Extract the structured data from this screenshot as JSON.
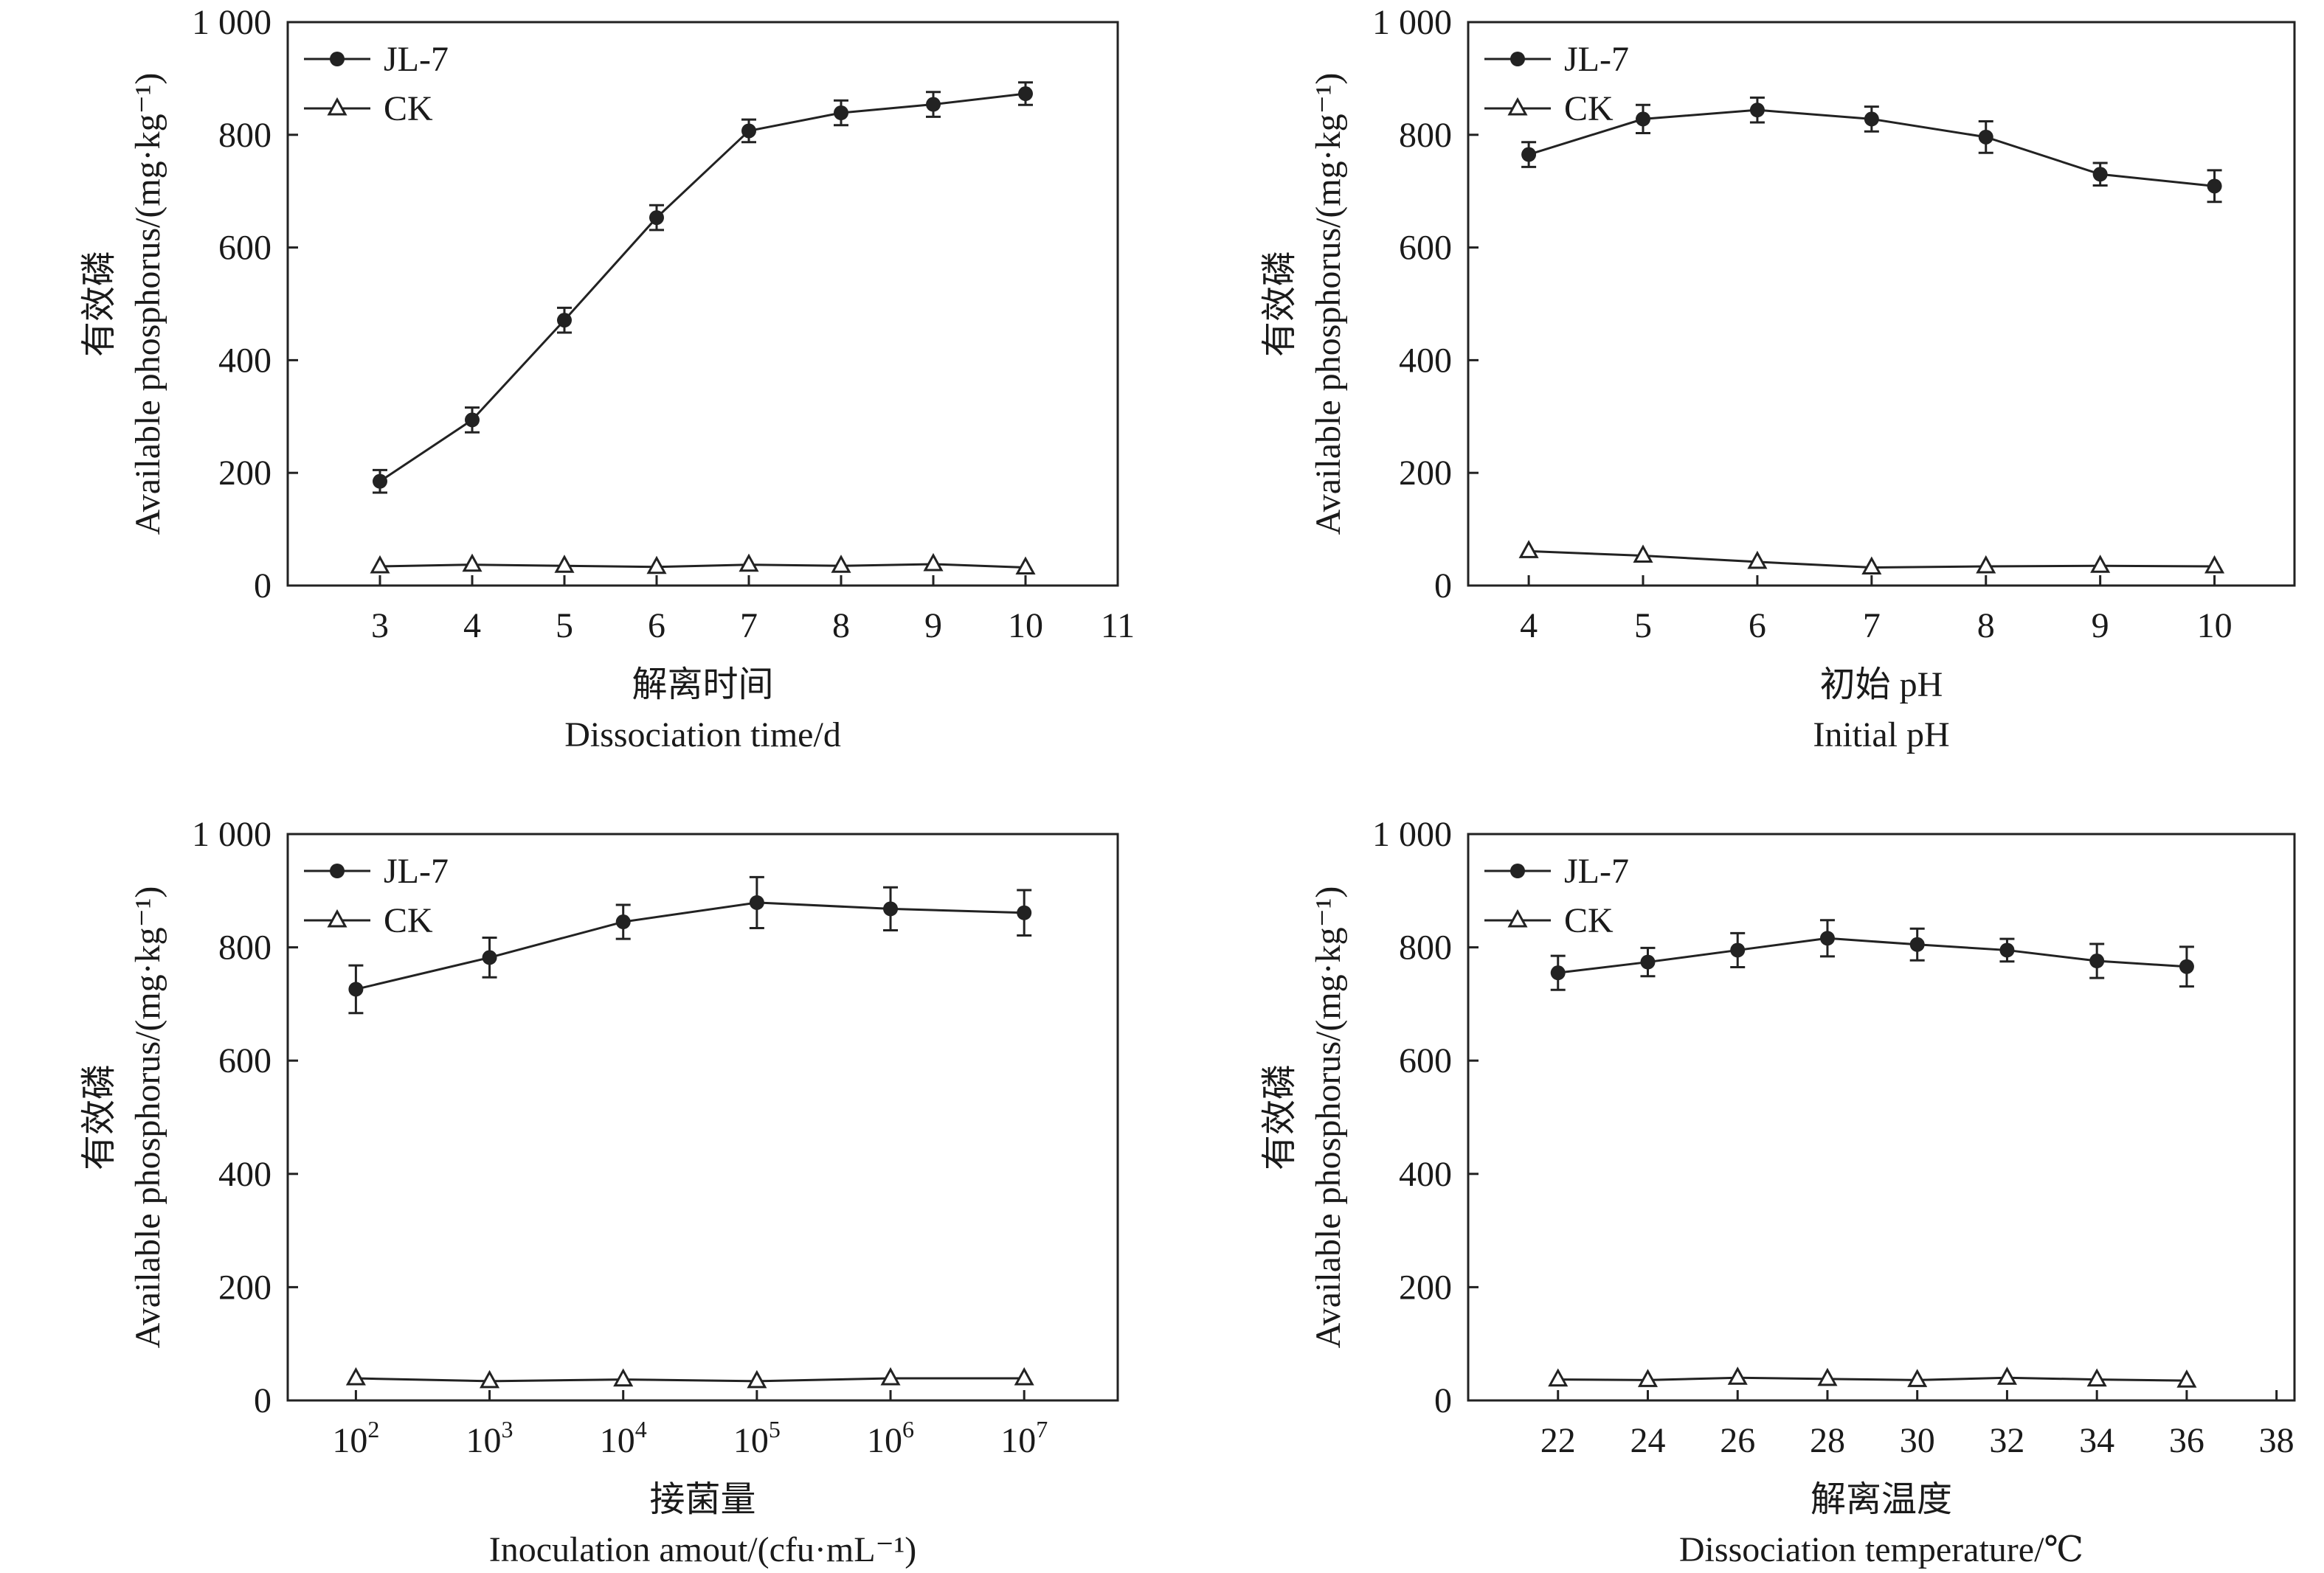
{
  "chart_data": [
    {
      "type": "line",
      "xlabel_cn": "解离时间",
      "xlabel": "Dissociation time/d",
      "ylabel_cn": "有效磷",
      "ylabel": "Available phosphorus/(mg·kg⁻¹)",
      "ylim": [
        0,
        1000
      ],
      "xlim": [
        2,
        11
      ],
      "yticks": [
        "0",
        "200",
        "400",
        "600",
        "800",
        "1 000"
      ],
      "xticks": [
        {
          "v": 3,
          "t": "3"
        },
        {
          "v": 4,
          "t": "4"
        },
        {
          "v": 5,
          "t": "5"
        },
        {
          "v": 6,
          "t": "6"
        },
        {
          "v": 7,
          "t": "7"
        },
        {
          "v": 8,
          "t": "8"
        },
        {
          "v": 9,
          "t": "9"
        },
        {
          "v": 10,
          "t": "10"
        },
        {
          "v": 11,
          "t": "11"
        }
      ],
      "x": [
        3,
        4,
        5,
        6,
        7,
        8,
        9,
        10
      ],
      "series": [
        {
          "name": "JL-7",
          "marker": "filled-circle",
          "values": [
            185,
            294,
            471,
            653,
            807,
            839,
            854,
            873
          ],
          "errors": [
            20,
            22,
            22,
            22,
            20,
            22,
            22,
            20
          ]
        },
        {
          "name": "CK",
          "marker": "open-triangle",
          "values": [
            34,
            37,
            35,
            33,
            37,
            35,
            38,
            32
          ],
          "errors": [
            0,
            0,
            0,
            0,
            0,
            0,
            0,
            0
          ]
        }
      ]
    },
    {
      "type": "line",
      "xlabel_cn": "初始 pH",
      "xlabel": "Initial pH",
      "ylabel_cn": "有效磷",
      "ylabel": "Available phosphorus/(mg·kg⁻¹)",
      "ylim": [
        0,
        1000
      ],
      "xlim": [
        3.47,
        10.7
      ],
      "yticks": [
        "0",
        "200",
        "400",
        "600",
        "800",
        "1 000"
      ],
      "xticks": [
        {
          "v": 4,
          "t": "4"
        },
        {
          "v": 5,
          "t": "5"
        },
        {
          "v": 6,
          "t": "6"
        },
        {
          "v": 7,
          "t": "7"
        },
        {
          "v": 8,
          "t": "8"
        },
        {
          "v": 9,
          "t": "9"
        },
        {
          "v": 10,
          "t": "10"
        }
      ],
      "x": [
        4,
        5,
        6,
        7,
        8,
        9,
        10
      ],
      "series": [
        {
          "name": "JL-7",
          "marker": "filled-circle",
          "values": [
            765,
            828,
            844,
            828,
            796,
            730,
            709
          ],
          "errors": [
            22,
            25,
            22,
            22,
            28,
            20,
            28
          ]
        },
        {
          "name": "CK",
          "marker": "open-triangle",
          "values": [
            61,
            53,
            42,
            32,
            34,
            35,
            34
          ],
          "errors": [
            0,
            0,
            0,
            0,
            0,
            0,
            0
          ]
        }
      ]
    },
    {
      "type": "line",
      "xlabel_cn": "接菌量",
      "xlabel": "Inoculation amout/(cfu·mL⁻¹)",
      "ylabel_cn": "有效磷",
      "ylabel": "Available phosphorus/(mg·kg⁻¹)",
      "ylim": [
        0,
        1000
      ],
      "xlim": [
        1.49,
        7.7
      ],
      "yticks": [
        "0",
        "200",
        "400",
        "600",
        "800",
        "1 000"
      ],
      "xticks": [
        {
          "v": 2,
          "t": "10",
          "sup": "2"
        },
        {
          "v": 3,
          "t": "10",
          "sup": "3"
        },
        {
          "v": 4,
          "t": "10",
          "sup": "4"
        },
        {
          "v": 5,
          "t": "10",
          "sup": "5"
        },
        {
          "v": 6,
          "t": "10",
          "sup": "6"
        },
        {
          "v": 7,
          "t": "10",
          "sup": "7"
        }
      ],
      "x": [
        2,
        3,
        4,
        5,
        6,
        7
      ],
      "series": [
        {
          "name": "JL-7",
          "marker": "filled-circle",
          "values": [
            726,
            782,
            845,
            879,
            868,
            861
          ],
          "errors": [
            42,
            35,
            30,
            45,
            38,
            40
          ]
        },
        {
          "name": "CK",
          "marker": "open-triangle",
          "values": [
            39,
            34,
            37,
            34,
            39,
            39
          ],
          "errors": [
            0,
            0,
            0,
            0,
            0,
            0
          ]
        }
      ]
    },
    {
      "type": "line",
      "xlabel_cn": "解离温度",
      "xlabel": "Dissociation temperature/℃",
      "ylabel_cn": "有效磷",
      "ylabel": "Available phosphorus/(mg·kg⁻¹)",
      "ylim": [
        0,
        1000
      ],
      "xlim": [
        20,
        38.4
      ],
      "yticks": [
        "0",
        "200",
        "400",
        "600",
        "800",
        "1 000"
      ],
      "xticks": [
        {
          "v": 22,
          "t": "22"
        },
        {
          "v": 24,
          "t": "24"
        },
        {
          "v": 26,
          "t": "26"
        },
        {
          "v": 28,
          "t": "28"
        },
        {
          "v": 30,
          "t": "30"
        },
        {
          "v": 32,
          "t": "32"
        },
        {
          "v": 34,
          "t": "34"
        },
        {
          "v": 36,
          "t": "36"
        },
        {
          "v": 38,
          "t": "38"
        }
      ],
      "x": [
        22,
        24,
        26,
        28,
        30,
        32,
        34,
        36
      ],
      "series": [
        {
          "name": "JL-7",
          "marker": "filled-circle",
          "values": [
            755,
            774,
            795,
            816,
            805,
            795,
            776,
            766
          ],
          "errors": [
            30,
            25,
            30,
            32,
            28,
            20,
            30,
            35
          ]
        },
        {
          "name": "CK",
          "marker": "open-triangle",
          "values": [
            37,
            36,
            40,
            38,
            36,
            40,
            37,
            35
          ],
          "errors": [
            0,
            0,
            0,
            0,
            0,
            0,
            0,
            0
          ]
        }
      ]
    }
  ]
}
